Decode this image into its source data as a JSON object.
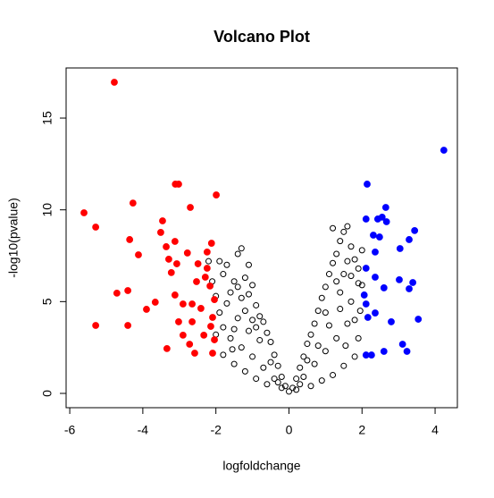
{
  "chart_data": {
    "type": "scatter",
    "title": "Volcano Plot",
    "x_label": "logfoldchange",
    "y_label": "-log10(pvalue)",
    "xlim": [
      -6.1,
      4.61
    ],
    "ylim": [
      -0.78,
      17.73
    ],
    "xticks": [
      -6,
      -4,
      -2,
      0,
      2,
      4
    ],
    "yticks": [
      0,
      5,
      10,
      15
    ],
    "grid": false,
    "series": [
      {
        "color": "#000000",
        "filled": false,
        "x": [
          -1.9,
          -1.8,
          -1.7,
          -1.5,
          -1.4,
          -1.3,
          -1.2,
          -1.1,
          -1.0,
          -0.9,
          -0.8,
          -0.7,
          -0.6,
          -0.5,
          -0.4,
          -0.3,
          -0.2,
          -0.1,
          0,
          0.1,
          0.2,
          0.3,
          0.4,
          0.5,
          0.6,
          0.7,
          0.8,
          0.9,
          1.0,
          1.1,
          1.2,
          1.3,
          1.4,
          1.5,
          1.2,
          1.6,
          1.7,
          1.8,
          1.9,
          2.0,
          1.95,
          1.9,
          1.8,
          1.5,
          1.2,
          0.9,
          0.6,
          -0.6,
          -0.9,
          -1.2,
          -1.5,
          -1.8,
          -2.0,
          -1.9,
          -2.0,
          -1.6,
          -1.3,
          -1.0,
          -0.7,
          -0.4,
          0.4,
          0.7,
          1.0,
          1.3,
          1.6,
          1.7,
          1.4,
          1.1,
          0.8,
          -0.8,
          -1.1,
          -1.4,
          -1.7,
          -1.5,
          -1.2,
          -0.9,
          -0.5,
          0.5,
          0.3,
          -0.3,
          1.9,
          1.6,
          1.3,
          1.0,
          -1.0,
          -1.3,
          -1.6,
          -1.8,
          -2.1,
          -2.2,
          -1.4,
          -1.1,
          1.4,
          1.7,
          1.8,
          2.0,
          1.5,
          -0.2,
          0.2,
          -1.55,
          1.55
        ],
        "values": [
          7.2,
          6.5,
          7.0,
          6.1,
          5.8,
          7.9,
          6.3,
          5.4,
          5.9,
          4.8,
          4.2,
          3.9,
          3.3,
          2.8,
          2.1,
          1.5,
          0.9,
          0.4,
          0.1,
          0.3,
          0.8,
          1.4,
          2.0,
          2.7,
          3.2,
          3.8,
          4.5,
          5.2,
          5.8,
          6.5,
          7.1,
          7.6,
          8.3,
          8.8,
          9.0,
          9.1,
          8.0,
          7.3,
          6.8,
          5.9,
          4.5,
          3.0,
          2.0,
          1.5,
          1.0,
          0.7,
          0.4,
          0.5,
          0.8,
          1.2,
          1.6,
          2.1,
          3.2,
          4.4,
          5.3,
          3.0,
          2.5,
          2.0,
          1.4,
          0.8,
          0.9,
          1.6,
          2.3,
          3.0,
          3.8,
          5.0,
          4.6,
          3.7,
          2.6,
          2.9,
          3.4,
          4.1,
          4.9,
          3.5,
          4.5,
          3.6,
          1.7,
          1.8,
          0.5,
          0.6,
          6.0,
          7.2,
          6.1,
          4.4,
          4.0,
          5.2,
          5.5,
          3.6,
          6.1,
          7.2,
          7.6,
          7.0,
          5.5,
          6.4,
          4.0,
          7.8,
          6.5,
          0.3,
          0.2,
          2.4,
          2.6
        ]
      },
      {
        "color": "#ff0000",
        "filled": true,
        "x": [
          -4.78,
          -5.61,
          -5.29,
          -5.29,
          -4.27,
          -4.36,
          -4.12,
          -4.71,
          -4.41,
          -4.41,
          -3.9,
          -3.66,
          -3.46,
          -3.51,
          -3.11,
          -3.02,
          -2.7,
          -1.99,
          -3.36,
          -3.29,
          -3.12,
          -3.07,
          -2.78,
          -2.49,
          -2.12,
          -2.24,
          -3.34,
          -2.58,
          -2.72,
          -3.12,
          -2.9,
          -2.65,
          -2.29,
          -2.16,
          -2.04,
          -2.09,
          -2.04,
          -2.09,
          -2.33,
          -2.41,
          -2.53,
          -2.65,
          -2.9,
          -3.02,
          -3.22,
          -2.24,
          -2.14
        ],
        "values": [
          16.95,
          9.84,
          9.06,
          3.7,
          10.37,
          8.38,
          7.55,
          5.46,
          5.6,
          3.7,
          4.58,
          4.97,
          9.4,
          8.77,
          11.4,
          11.4,
          10.13,
          10.81,
          7.99,
          7.31,
          8.28,
          7.06,
          7.65,
          7.06,
          8.18,
          7.7,
          2.44,
          2.19,
          2.68,
          5.36,
          4.87,
          3.9,
          6.33,
          5.85,
          5.11,
          4.14,
          2.92,
          2.19,
          3.17,
          4.63,
          6.09,
          4.87,
          3.17,
          3.9,
          6.58,
          6.82,
          3.65
        ]
      },
      {
        "color": "#0000ff",
        "filled": true,
        "x": [
          4.24,
          2.14,
          2.65,
          2.11,
          2.43,
          2.55,
          2.67,
          3.44,
          3.29,
          3.04,
          2.31,
          2.48,
          2.36,
          2.11,
          3.02,
          3.39,
          3.29,
          2.36,
          2.6,
          3.54,
          2.8,
          3.11,
          3.23,
          2.6,
          2.11,
          2.26,
          2.11,
          2.16,
          2.36,
          2.06
        ],
        "values": [
          13.25,
          11.4,
          10.13,
          9.5,
          9.5,
          9.6,
          9.35,
          8.87,
          8.38,
          7.89,
          8.62,
          8.52,
          7.7,
          6.82,
          6.19,
          6.04,
          5.7,
          6.33,
          5.75,
          4.04,
          3.9,
          2.68,
          2.29,
          2.29,
          2.09,
          2.09,
          4.87,
          4.14,
          4.38,
          5.36
        ]
      }
    ]
  }
}
